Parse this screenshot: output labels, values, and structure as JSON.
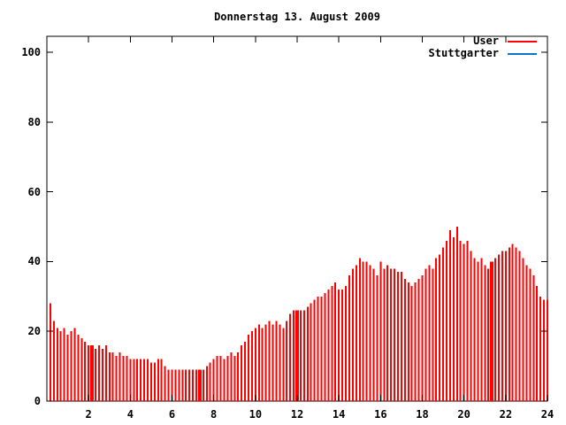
{
  "title": "Donnerstag 13. August 2009",
  "legend": [
    {
      "label": "User",
      "color": "#ff0000"
    },
    {
      "label": "Stuttgarter",
      "color": "#0b74d1"
    }
  ],
  "colors": {
    "background": "#ffffff",
    "axis": "#000000",
    "user_series": "#ff0000",
    "stuttgarter_series": "#0b74d1"
  },
  "chart_data": {
    "type": "bar",
    "title": "Donnerstag 13. August 2009",
    "xlabel": "",
    "ylabel": "",
    "xlim": [
      0,
      24
    ],
    "ylim": [
      0,
      105
    ],
    "x_ticks": [
      2,
      4,
      6,
      8,
      10,
      12,
      14,
      16,
      18,
      20,
      22,
      24
    ],
    "y_ticks": [
      0,
      20,
      40,
      60,
      80,
      100
    ],
    "grid": false,
    "legend_position": "top-right-inside",
    "x_unit": "hour of day",
    "sample_interval_minutes": 10,
    "series": [
      {
        "name": "User",
        "color": "#ff0000",
        "style": "impulses",
        "values": [
          28,
          23,
          21,
          20,
          21,
          19,
          20,
          21,
          19,
          18,
          17,
          16,
          16,
          15,
          16,
          15,
          16,
          14,
          14,
          13,
          14,
          13,
          13,
          12,
          12,
          12,
          12,
          12,
          12,
          11,
          11,
          12,
          12,
          10,
          9,
          9,
          9,
          9,
          9,
          9,
          9,
          9,
          9,
          9,
          9,
          10,
          11,
          12,
          13,
          13,
          12,
          13,
          14,
          13,
          14,
          16,
          17,
          19,
          20,
          21,
          22,
          21,
          22,
          23,
          22,
          23,
          22,
          21,
          23,
          25,
          26,
          26,
          26,
          26,
          27,
          28,
          29,
          30,
          30,
          31,
          32,
          33,
          34,
          32,
          32,
          33,
          36,
          38,
          39,
          41,
          40,
          40,
          39,
          38,
          36,
          40,
          38,
          39,
          38,
          38,
          37,
          37,
          35,
          34,
          33,
          34,
          35,
          36,
          38,
          39,
          38,
          41,
          42,
          44,
          46,
          49,
          47,
          50,
          46,
          45,
          46,
          43,
          41,
          40,
          41,
          39,
          38,
          40,
          41,
          42,
          43,
          43,
          44,
          45,
          44,
          43,
          41,
          39,
          38,
          36,
          33,
          30,
          29,
          29
        ]
      },
      {
        "name": "Stuttgarter",
        "color": "#0b74d1",
        "style": "line",
        "values": []
      }
    ],
    "merged_bar_indices": [
      12,
      43,
      71,
      127
    ]
  }
}
